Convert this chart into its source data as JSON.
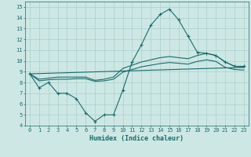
{
  "background_color": "#cde8e4",
  "grid_color": "#aacfcc",
  "line_color": "#1a6b6b",
  "xlabel": "Humidex (Indice chaleur)",
  "ylim": [
    4,
    15.5
  ],
  "xlim": [
    -0.5,
    23.5
  ],
  "yticks": [
    4,
    5,
    6,
    7,
    8,
    9,
    10,
    11,
    12,
    13,
    14,
    15
  ],
  "xticks": [
    0,
    1,
    2,
    3,
    4,
    5,
    6,
    7,
    8,
    9,
    10,
    11,
    12,
    13,
    14,
    15,
    16,
    17,
    18,
    19,
    20,
    21,
    22,
    23
  ],
  "series1_x": [
    0,
    1,
    2,
    3,
    4,
    5,
    6,
    7,
    8,
    9,
    10,
    11,
    12,
    13,
    14,
    15,
    16,
    17,
    18,
    19,
    20,
    21,
    22,
    23
  ],
  "series1_y": [
    8.8,
    7.5,
    8.0,
    7.0,
    7.0,
    6.5,
    5.2,
    4.4,
    5.0,
    5.0,
    7.3,
    9.9,
    11.5,
    13.3,
    14.3,
    14.8,
    13.8,
    12.3,
    10.8,
    10.7,
    10.5,
    9.9,
    9.5,
    9.5
  ],
  "series2_x": [
    0,
    1,
    2,
    3,
    4,
    5,
    6,
    7,
    8,
    9,
    10,
    11,
    12,
    13,
    14,
    15,
    16,
    17,
    18,
    19,
    20,
    21,
    22,
    23
  ],
  "series2_y": [
    8.8,
    8.3,
    8.4,
    8.5,
    8.5,
    8.5,
    8.5,
    8.2,
    8.3,
    8.5,
    9.3,
    9.6,
    9.9,
    10.1,
    10.3,
    10.4,
    10.3,
    10.2,
    10.5,
    10.7,
    10.5,
    9.9,
    9.5,
    9.4
  ],
  "series3_x": [
    0,
    1,
    2,
    3,
    4,
    5,
    6,
    7,
    8,
    9,
    10,
    11,
    12,
    13,
    14,
    15,
    16,
    17,
    18,
    19,
    20,
    21,
    22,
    23
  ],
  "series3_y": [
    8.8,
    8.15,
    8.25,
    8.3,
    8.3,
    8.35,
    8.35,
    8.1,
    8.15,
    8.3,
    8.95,
    9.2,
    9.45,
    9.6,
    9.75,
    9.85,
    9.78,
    9.7,
    9.95,
    10.1,
    9.95,
    9.4,
    9.2,
    9.15
  ],
  "series4_x": [
    0,
    23
  ],
  "series4_y": [
    8.8,
    9.4
  ]
}
